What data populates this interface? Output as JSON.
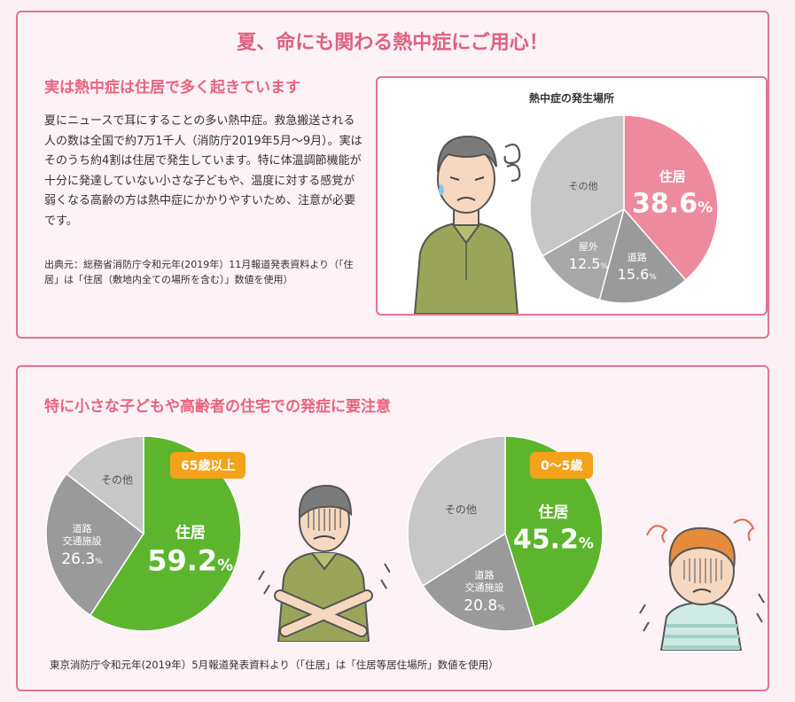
{
  "header": {
    "title": "夏、命にも関わる熱中症にご用心！"
  },
  "section1": {
    "heading": "実は熱中症は住居で多く起きています",
    "body": "夏にニュースで耳にすることの多い熱中症。救急搬送される人の数は全国で約7万1千人（消防庁2019年5月〜9月）。実はそのうち約4割は住居で発生しています。特に体温調節機能が十分に発達していない小さな子どもや、温度に対する感覚が弱くなる高齢の方は熱中症にかかりやすいため、注意が必要です。",
    "source": "出典元：総務省消防庁令和元年(2019年）11月報道発表資料より（「住居」は「住居（敷地内全ての場所を含む）」数値を使用）"
  },
  "section2": {
    "heading": "特に小さな子どもや高齢者の住宅での発症に要注意",
    "source": "東京消防庁令和元年(2019年）5月報道発表資料より（「住居」は「住居等居住場所」数値を使用）"
  },
  "colors": {
    "accent": "#e0607e",
    "pink_slice": "#ee8a9e",
    "green_slice": "#5db52e",
    "gray_dark": "#9a9a9a",
    "gray_mid": "#a8a8a8",
    "gray_light": "#c7c7c7",
    "badge": "#f4a21a"
  },
  "chart_data": [
    {
      "type": "pie",
      "title": "熱中症の発生場所",
      "slices": [
        {
          "label": "住居",
          "value": 38.6,
          "display": "38.6",
          "unit": "%",
          "color": "#ee8a9e"
        },
        {
          "label": "道路",
          "value": 15.6,
          "display": "15.6",
          "unit": "%",
          "color": "#9a9a9a"
        },
        {
          "label": "屋外",
          "value": 12.5,
          "display": "12.5",
          "unit": "%",
          "color": "#a8a8a8"
        },
        {
          "label": "その他",
          "value": 33.3,
          "display": "",
          "unit": "",
          "color": "#c7c7c7"
        }
      ]
    },
    {
      "type": "pie",
      "title": "",
      "badge": "65歳以上",
      "slices": [
        {
          "label": "住居",
          "value": 59.2,
          "display": "59.2",
          "unit": "%",
          "color": "#5db52e"
        },
        {
          "label": "道路\n交通施設",
          "value": 26.3,
          "display": "26.3",
          "unit": "%",
          "color": "#9a9a9a"
        },
        {
          "label": "その他",
          "value": 14.5,
          "display": "",
          "unit": "",
          "color": "#c7c7c7"
        }
      ]
    },
    {
      "type": "pie",
      "title": "",
      "badge": "0〜5歳",
      "slices": [
        {
          "label": "住居",
          "value": 45.2,
          "display": "45.2",
          "unit": "%",
          "color": "#5db52e"
        },
        {
          "label": "道路\n交通施設",
          "value": 20.8,
          "display": "20.8",
          "unit": "%",
          "color": "#9a9a9a"
        },
        {
          "label": "その他",
          "value": 34.0,
          "display": "",
          "unit": "",
          "color": "#c7c7c7"
        }
      ]
    }
  ]
}
